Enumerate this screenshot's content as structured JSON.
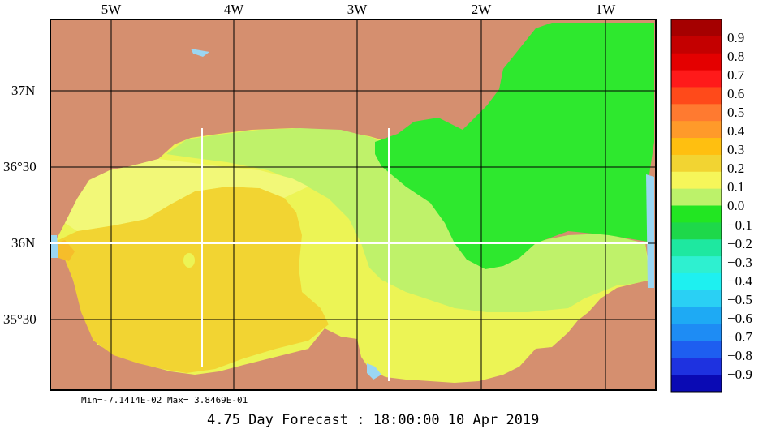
{
  "map": {
    "lon_ticks": [
      "5W",
      "4W",
      "3W",
      "2W",
      "1W"
    ],
    "lat_ticks": [
      "37N",
      "36°30",
      "36N",
      "35°30"
    ],
    "land_color": "#d58f6f",
    "sea_colors": {
      "orange": "#f6bd2a",
      "deep_yellow": "#f2d432",
      "yellow": "#ecf455",
      "light_yellow": "#f2f878",
      "yellow_green": "#bff26a",
      "green": "#2ee82e",
      "lake": "#9bd6f2"
    },
    "stats": "Min=-7.1414E-02  Max= 3.8469E-01",
    "caption": "4.75 Day Forecast : 18:00:00  10 Apr 2019"
  },
  "colorbar": {
    "labels": [
      "0.9",
      "0.8",
      "0.7",
      "0.6",
      "0.5",
      "0.4",
      "0.3",
      "0.2",
      "0.1",
      "0.0",
      "−0.1",
      "−0.2",
      "−0.3",
      "−0.4",
      "−0.5",
      "−0.6",
      "−0.7",
      "−0.8",
      "−0.9"
    ],
    "colors": [
      "#a50000",
      "#c40000",
      "#e40000",
      "#ff1a1a",
      "#ff4a1a",
      "#ff7a30",
      "#ff9a2a",
      "#ffbf10",
      "#f2d432",
      "#f6f65a",
      "#bcf26a",
      "#22e622",
      "#1ed84a",
      "#1ee8a0",
      "#2ef0d0",
      "#1ef0f0",
      "#2ad0f4",
      "#1eaaf4",
      "#1e8cf4",
      "#1e5ef0",
      "#1e32e0",
      "#0a0ab4"
    ]
  }
}
